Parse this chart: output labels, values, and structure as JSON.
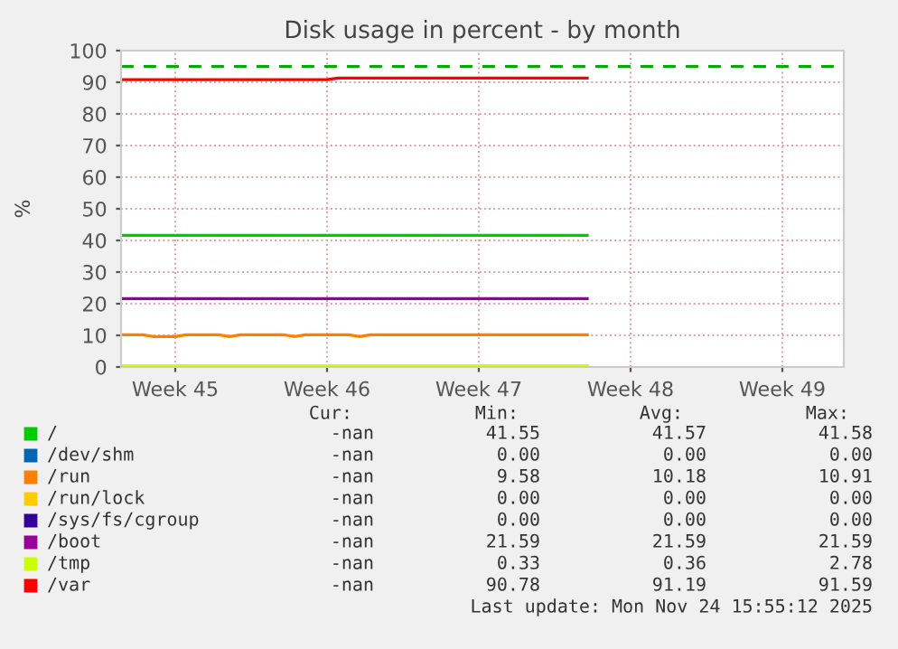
{
  "chart_data": {
    "type": "line",
    "title": "Disk usage in percent - by month",
    "ylabel": "%",
    "categories": [
      null,
      null,
      null,
      null,
      null,
      "Week 45",
      null,
      null,
      null,
      null,
      null,
      null,
      null,
      null,
      null,
      null,
      null,
      null,
      null,
      "Week 46",
      null,
      null,
      null,
      null,
      null,
      null,
      null,
      null,
      null,
      null,
      null,
      null,
      null,
      "Week 47",
      null,
      null,
      null,
      null,
      null,
      null,
      null,
      null,
      null,
      null,
      null,
      null,
      null,
      "Week 48",
      null,
      null,
      null,
      null,
      null,
      null,
      null,
      null,
      null,
      null,
      null,
      null,
      null,
      "Week 49",
      null,
      null,
      null,
      null,
      null
    ],
    "ylim": [
      0,
      100
    ],
    "yticks": [
      0,
      10,
      20,
      30,
      40,
      50,
      60,
      70,
      80,
      90,
      100
    ],
    "grid": true,
    "legend": "bottom",
    "series": [
      {
        "name": "/",
        "color": "#00cc00",
        "values": [
          41.6,
          41.6,
          41.6,
          41.6,
          41.6,
          41.6,
          41.6,
          41.6,
          41.6,
          41.6,
          41.6,
          41.6,
          41.6,
          41.6,
          41.6,
          41.6,
          41.6,
          41.6,
          41.6,
          41.6,
          41.6,
          41.6,
          41.6,
          41.6,
          41.6,
          41.6,
          41.6,
          41.6,
          41.6,
          41.6,
          41.6,
          41.6,
          41.6,
          41.6,
          41.6,
          41.6,
          41.6,
          41.6,
          41.6,
          41.6,
          41.6,
          41.6,
          41.6,
          41.6,
          null,
          null,
          null,
          null,
          null,
          null,
          null,
          null,
          null,
          null,
          null,
          null,
          null,
          null,
          null,
          null,
          null,
          null,
          null,
          null,
          null,
          null,
          null
        ]
      },
      {
        "name": "/dev/shm",
        "color": "#0066b3",
        "values": [
          null,
          null,
          null,
          null,
          null,
          null,
          null,
          null,
          null,
          null,
          null,
          null,
          null,
          null,
          null,
          null,
          null,
          null,
          null,
          null,
          null,
          null,
          null,
          null,
          null,
          null,
          null,
          null,
          null,
          null,
          null,
          null,
          null,
          null,
          null,
          null,
          null,
          null,
          null,
          null,
          null,
          null,
          null,
          null,
          null,
          null,
          null,
          null,
          null,
          null,
          null,
          null,
          null,
          null,
          null,
          null,
          null,
          null,
          null,
          null,
          null,
          null,
          null,
          null,
          null,
          null,
          null
        ]
      },
      {
        "name": "/run",
        "color": "#ff8000",
        "values": [
          10.2,
          10.2,
          10.2,
          9.6,
          9.6,
          9.6,
          10.2,
          10.2,
          10.2,
          10.2,
          9.6,
          10.2,
          10.2,
          10.2,
          10.2,
          10.2,
          9.6,
          10.2,
          10.2,
          10.2,
          10.2,
          10.2,
          9.6,
          10.2,
          10.2,
          10.2,
          10.2,
          10.2,
          10.2,
          10.2,
          10.2,
          10.2,
          10.2,
          10.2,
          10.2,
          10.2,
          10.2,
          10.2,
          10.2,
          10.2,
          10.2,
          10.2,
          10.2,
          10.2,
          null,
          null,
          null,
          null,
          null,
          null,
          null,
          null,
          null,
          null,
          null,
          null,
          null,
          null,
          null,
          null,
          null,
          null,
          null,
          null,
          null,
          null,
          null
        ]
      },
      {
        "name": "/run/lock",
        "color": "#ffcc00",
        "values": [
          null,
          null,
          null,
          null,
          null,
          null,
          null,
          null,
          null,
          null,
          null,
          null,
          null,
          null,
          null,
          null,
          null,
          null,
          null,
          null,
          null,
          null,
          null,
          null,
          null,
          null,
          null,
          null,
          null,
          null,
          null,
          null,
          null,
          null,
          null,
          null,
          null,
          null,
          null,
          null,
          null,
          null,
          null,
          null,
          null,
          null,
          null,
          null,
          null,
          null,
          null,
          null,
          null,
          null,
          null,
          null,
          null,
          null,
          null,
          null,
          null,
          null,
          null,
          null,
          null,
          null,
          null
        ]
      },
      {
        "name": "/sys/fs/cgroup",
        "color": "#330099",
        "values": [
          null,
          null,
          null,
          null,
          null,
          null,
          null,
          null,
          null,
          null,
          null,
          null,
          null,
          null,
          null,
          null,
          null,
          null,
          null,
          null,
          null,
          null,
          null,
          null,
          null,
          null,
          null,
          null,
          null,
          null,
          null,
          null,
          null,
          null,
          null,
          null,
          null,
          null,
          null,
          null,
          null,
          null,
          null,
          null,
          null,
          null,
          null,
          null,
          null,
          null,
          null,
          null,
          null,
          null,
          null,
          null,
          null,
          null,
          null,
          null,
          null,
          null,
          null,
          null,
          null,
          null,
          null
        ]
      },
      {
        "name": "/boot",
        "color": "#990099",
        "values": [
          21.6,
          21.6,
          21.6,
          21.6,
          21.6,
          21.6,
          21.6,
          21.6,
          21.6,
          21.6,
          21.6,
          21.6,
          21.6,
          21.6,
          21.6,
          21.6,
          21.6,
          21.6,
          21.6,
          21.6,
          21.6,
          21.6,
          21.6,
          21.6,
          21.6,
          21.6,
          21.6,
          21.6,
          21.6,
          21.6,
          21.6,
          21.6,
          21.6,
          21.6,
          21.6,
          21.6,
          21.6,
          21.6,
          21.6,
          21.6,
          21.6,
          21.6,
          21.6,
          21.6,
          null,
          null,
          null,
          null,
          null,
          null,
          null,
          null,
          null,
          null,
          null,
          null,
          null,
          null,
          null,
          null,
          null,
          null,
          null,
          null,
          null,
          null,
          null
        ]
      },
      {
        "name": "/tmp",
        "color": "#ccff00",
        "values": [
          0.4,
          0.4,
          0.4,
          0.4,
          0.4,
          0.4,
          0.4,
          0.4,
          0.4,
          0.4,
          0.4,
          0.4,
          0.4,
          0.4,
          0.4,
          0.4,
          0.4,
          0.4,
          0.4,
          0.4,
          0.4,
          0.4,
          0.4,
          0.4,
          0.4,
          0.4,
          0.4,
          0.4,
          0.4,
          0.4,
          0.4,
          0.4,
          0.4,
          0.4,
          0.4,
          0.4,
          0.4,
          0.4,
          0.4,
          0.4,
          0.4,
          0.4,
          0.4,
          0.4,
          null,
          null,
          null,
          null,
          null,
          null,
          null,
          null,
          null,
          null,
          null,
          null,
          null,
          null,
          null,
          null,
          null,
          null,
          null,
          null,
          null,
          null,
          null
        ]
      },
      {
        "name": "/var",
        "color": "#ff0000",
        "values": [
          90.8,
          90.8,
          90.8,
          90.8,
          90.8,
          90.8,
          90.8,
          90.8,
          90.8,
          90.8,
          90.8,
          90.8,
          90.8,
          90.8,
          90.8,
          90.8,
          90.8,
          90.8,
          90.8,
          90.8,
          91.3,
          91.3,
          91.3,
          91.3,
          91.3,
          91.3,
          91.3,
          91.3,
          91.3,
          91.3,
          91.3,
          91.3,
          91.3,
          91.3,
          91.3,
          91.3,
          91.3,
          91.3,
          91.3,
          91.3,
          91.3,
          91.3,
          91.3,
          91.3,
          null,
          null,
          null,
          null,
          null,
          null,
          null,
          null,
          null,
          null,
          null,
          null,
          null,
          null,
          null,
          null,
          null,
          null,
          null,
          null,
          null,
          null,
          null
        ]
      }
    ],
    "ref_lines": [
      {
        "axis": "y",
        "value": 95,
        "color": "#00aa00",
        "line_style": "dashed"
      }
    ],
    "annotations": [
      "Cur:",
      "Min:",
      "Avg:",
      "Max:",
      "-nan",
      "41.55",
      "41.57",
      "41.58",
      "-nan",
      "0.00",
      "0.00",
      "0.00",
      "-nan",
      "9.58",
      "10.18",
      "10.91",
      "-nan",
      "0.00",
      "0.00",
      "0.00",
      "-nan",
      "0.00",
      "0.00",
      "0.00",
      "-nan",
      "21.59",
      "21.59",
      "21.59",
      "-nan",
      "0.33",
      "0.36",
      "2.78",
      "-nan",
      "90.78",
      "91.19",
      "91.59",
      "Last update: Mon Nov 24 15:55:12 2025"
    ]
  }
}
